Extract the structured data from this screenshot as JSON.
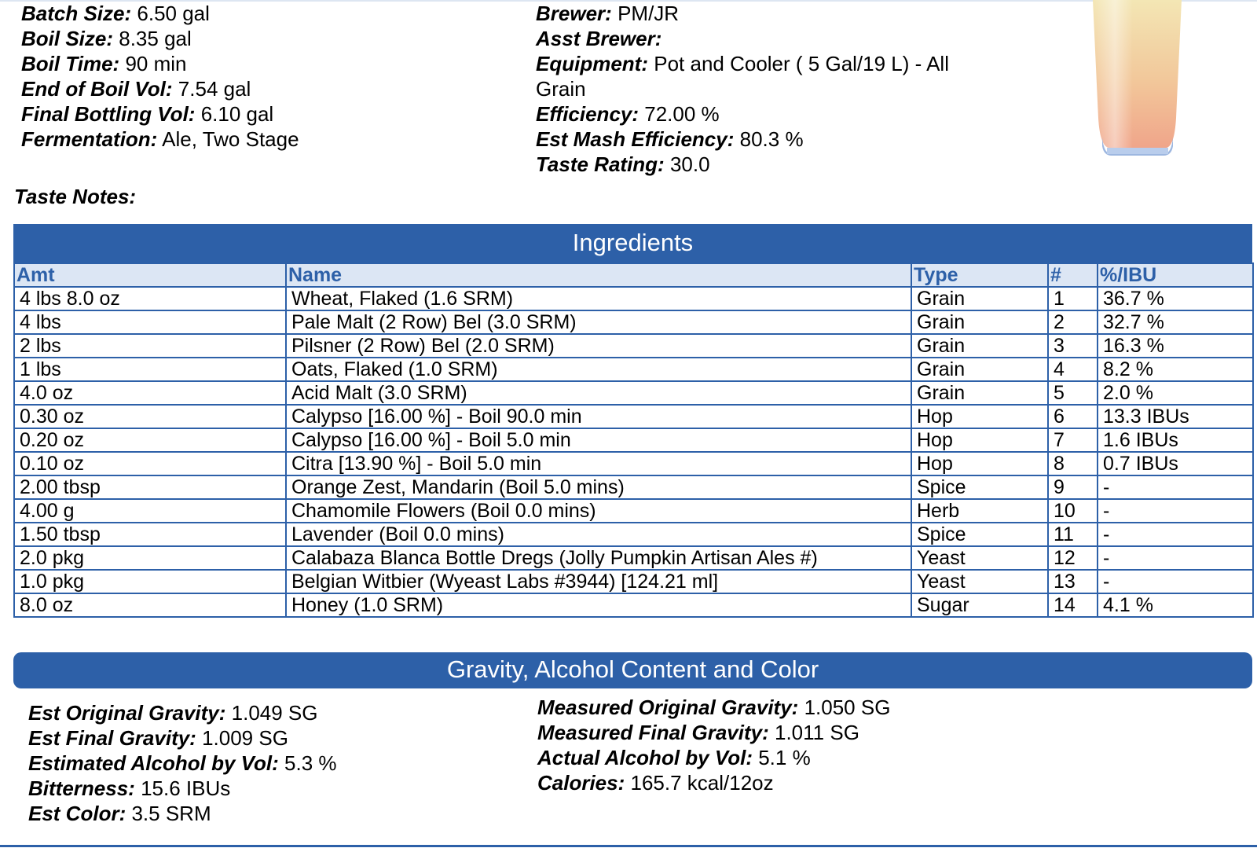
{
  "left_fields": [
    {
      "label": "Batch Size:",
      "value": "6.50 gal"
    },
    {
      "label": "Boil Size:",
      "value": "8.35 gal"
    },
    {
      "label": "Boil Time:",
      "value": "90 min"
    },
    {
      "label": "End of Boil Vol:",
      "value": "7.54 gal"
    },
    {
      "label": "Final Bottling Vol:",
      "value": "6.10 gal"
    },
    {
      "label": "Fermentation:",
      "value": "Ale, Two Stage"
    }
  ],
  "right_fields": [
    {
      "label": "Brewer:",
      "value": "PM/JR"
    },
    {
      "label": "Asst Brewer:",
      "value": ""
    },
    {
      "label": "Equipment:",
      "value": "Pot and Cooler ( 5 Gal/19 L) - All"
    },
    {
      "label": "",
      "value": "Grain"
    },
    {
      "label": "Efficiency:",
      "value": "72.00 %"
    },
    {
      "label": "Est Mash Efficiency:",
      "value": "80.3 %"
    },
    {
      "label": "Taste Rating:",
      "value": "30.0"
    }
  ],
  "taste_notes_label": "Taste Notes:",
  "ingredients": {
    "title": "Ingredients",
    "columns": [
      "Amt",
      "Name",
      "Type",
      "#",
      "%/IBU"
    ],
    "rows": [
      [
        "4 lbs 8.0 oz",
        "Wheat, Flaked (1.6 SRM)",
        "Grain",
        "1",
        "36.7 %"
      ],
      [
        "4 lbs",
        "Pale Malt (2 Row) Bel (3.0 SRM)",
        "Grain",
        "2",
        "32.7 %"
      ],
      [
        "2 lbs",
        "Pilsner (2 Row) Bel (2.0 SRM)",
        "Grain",
        "3",
        "16.3 %"
      ],
      [
        "1 lbs",
        "Oats, Flaked (1.0 SRM)",
        "Grain",
        "4",
        "8.2 %"
      ],
      [
        "4.0 oz",
        "Acid Malt (3.0 SRM)",
        "Grain",
        "5",
        "2.0 %"
      ],
      [
        "0.30 oz",
        "Calypso [16.00 %] - Boil 90.0 min",
        "Hop",
        "6",
        "13.3 IBUs"
      ],
      [
        "0.20 oz",
        "Calypso [16.00 %] - Boil 5.0 min",
        "Hop",
        "7",
        "1.6 IBUs"
      ],
      [
        "0.10 oz",
        "Citra [13.90 %] - Boil 5.0 min",
        "Hop",
        "8",
        "0.7 IBUs"
      ],
      [
        "2.00 tbsp",
        "Orange Zest, Mandarin (Boil 5.0 mins)",
        "Spice",
        "9",
        "-"
      ],
      [
        "4.00 g",
        "Chamomile Flowers (Boil 0.0 mins)",
        "Herb",
        "10",
        "-"
      ],
      [
        "1.50 tbsp",
        "Lavender (Boil 0.0 mins)",
        "Spice",
        "11",
        "-"
      ],
      [
        "2.0 pkg",
        "Calabaza Blanca Bottle Dregs (Jolly Pumpkin Artisan Ales #)",
        "Yeast",
        "12",
        "-"
      ],
      [
        "1.0 pkg",
        "Belgian Witbier (Wyeast Labs #3944) [124.21 ml]",
        "Yeast",
        "13",
        "-"
      ],
      [
        "8.0 oz",
        "Honey (1.0 SRM)",
        "Sugar",
        "14",
        "4.1 %"
      ]
    ]
  },
  "gravity": {
    "title": "Gravity, Alcohol Content and Color",
    "left": [
      {
        "label": "Est Original Gravity:",
        "value": "1.049 SG"
      },
      {
        "label": "Est Final Gravity:",
        "value": "1.009 SG"
      },
      {
        "label": "Estimated Alcohol by Vol:",
        "value": "5.3 %"
      },
      {
        "label": "Bitterness:",
        "value": "15.6 IBUs"
      },
      {
        "label": "Est Color:",
        "value": "3.5 SRM"
      }
    ],
    "right": [
      {
        "label": "Measured Original Gravity:",
        "value": "1.050 SG"
      },
      {
        "label": "Measured Final Gravity:",
        "value": "1.011 SG"
      },
      {
        "label": "Actual Alcohol by Vol:",
        "value": "5.1 %"
      },
      {
        "label": "Calories:",
        "value": "165.7 kcal/12oz"
      }
    ]
  },
  "colors": {
    "accent": "#2d60a8",
    "header_bg": "#dce6f4"
  },
  "icons": {
    "beer_glass": "beer-glass-icon"
  }
}
